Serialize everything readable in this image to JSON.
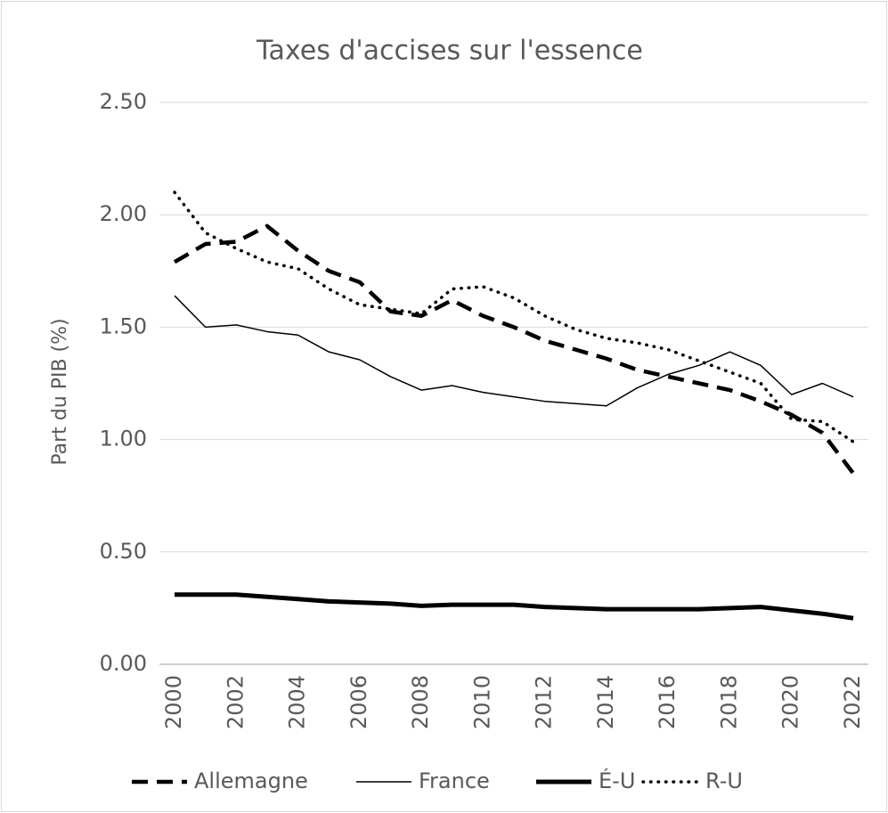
{
  "chart_data": {
    "type": "line",
    "title": "Taxes d'accises sur l'essence",
    "y_label": "Part du PIB (%)",
    "categories": [
      "2000",
      null,
      "2002",
      null,
      "2004",
      null,
      "2006",
      null,
      "2008",
      null,
      "2010",
      null,
      "2012",
      null,
      "2014",
      null,
      "2016",
      null,
      "2018",
      null,
      "2020",
      null,
      "2022"
    ],
    "ylim": [
      0,
      2.5
    ],
    "yticks": [
      {
        "value": 0,
        "label": "0.00"
      },
      {
        "value": 0.5,
        "label": "0.50"
      },
      {
        "value": 1,
        "label": "1.00"
      },
      {
        "value": 1.5,
        "label": "1.50"
      },
      {
        "value": 2,
        "label": "2.00"
      },
      {
        "value": 2.5,
        "label": "2.50"
      }
    ],
    "grid": true,
    "legend": "bottom",
    "series": [
      {
        "name": "Allemagne",
        "color": "#000000",
        "style": "dashed",
        "values": [
          1.79,
          1.87,
          1.88,
          1.95,
          1.84,
          1.75,
          1.7,
          1.57,
          1.55,
          1.62,
          1.55,
          1.5,
          1.44,
          1.4,
          1.36,
          1.31,
          1.28,
          1.25,
          1.22,
          1.17,
          1.11,
          1.03,
          0.85
        ]
      },
      {
        "name": "France",
        "color": "#000000",
        "style": "thin",
        "values": [
          1.64,
          1.5,
          1.51,
          1.48,
          1.465,
          1.39,
          1.355,
          1.28,
          1.22,
          1.24,
          1.21,
          1.19,
          1.17,
          1.16,
          1.15,
          1.23,
          1.29,
          1.33,
          1.39,
          1.33,
          1.2,
          1.25,
          1.19
        ]
      },
      {
        "name": "É-U",
        "color": "#000000",
        "style": "thick",
        "values": [
          0.31,
          0.31,
          0.31,
          0.3,
          0.29,
          0.28,
          0.275,
          0.27,
          0.26,
          0.265,
          0.265,
          0.265,
          0.255,
          0.25,
          0.245,
          0.245,
          0.245,
          0.245,
          0.25,
          0.255,
          0.24,
          0.225,
          0.205
        ]
      },
      {
        "name": "R-U",
        "color": "#000000",
        "style": "dotted",
        "values": [
          2.1,
          1.92,
          1.85,
          1.79,
          1.76,
          1.67,
          1.6,
          1.58,
          1.56,
          1.67,
          1.68,
          1.63,
          1.55,
          1.49,
          1.45,
          1.43,
          1.4,
          1.35,
          1.3,
          1.25,
          1.09,
          1.08,
          0.99
        ]
      }
    ]
  }
}
